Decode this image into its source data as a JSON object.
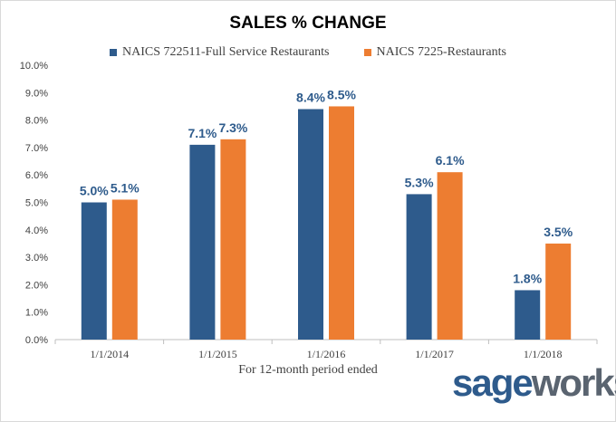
{
  "chart_data": {
    "type": "bar",
    "title": "SALES % CHANGE",
    "xlabel": "For 12-month period ended",
    "ylabel": "",
    "categories": [
      "1/1/2014",
      "1/1/2015",
      "1/1/2016",
      "1/1/2017",
      "1/1/2018"
    ],
    "series": [
      {
        "name": "NAICS 722511-Full Service Restaurants",
        "color": "#2e5b8c",
        "values": [
          5.0,
          7.1,
          8.4,
          5.3,
          1.8
        ]
      },
      {
        "name": "NAICS 7225-Restaurants",
        "color": "#ed7d31",
        "values": [
          5.1,
          7.3,
          8.5,
          6.1,
          3.5
        ]
      }
    ],
    "ylim": [
      0,
      10
    ],
    "yticks": [
      0,
      1,
      2,
      3,
      4,
      5,
      6,
      7,
      8,
      9,
      10
    ],
    "ytick_labels": [
      "0.0%",
      "1.0%",
      "2.0%",
      "3.0%",
      "4.0%",
      "5.0%",
      "6.0%",
      "7.0%",
      "8.0%",
      "9.0%",
      "10.0%"
    ],
    "data_labels": [
      [
        "5.0%",
        "7.1%",
        "8.4%",
        "5.3%",
        "1.8%"
      ],
      [
        "5.1%",
        "7.3%",
        "8.5%",
        "6.1%",
        "3.5%"
      ]
    ],
    "grid": false,
    "legend_position": "top-center"
  },
  "logo": {
    "part1": "sage",
    "part2": "works",
    "mark": "®"
  }
}
